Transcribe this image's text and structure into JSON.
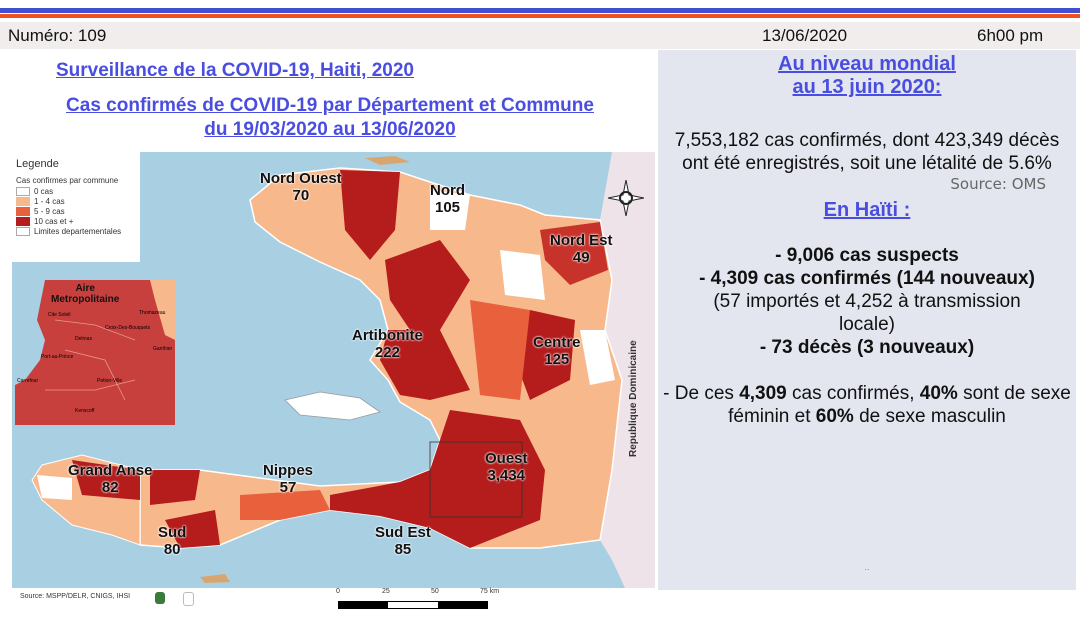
{
  "header": {
    "numero": "Numéro: 109",
    "date": "13/06/2020",
    "time": "6h00 pm"
  },
  "titles": {
    "main": "Surveillance de la COVID-19, Haiti, 2020",
    "subtitle_line1": "Cas confirmés de COVID-19 par Département et Commune",
    "subtitle_line2": "du 19/03/2020 au 13/06/2020"
  },
  "legend": {
    "title": "Legende",
    "subtitle": "Cas confirmes par commune",
    "items": [
      {
        "label": "0 cas",
        "color": "#ffffff"
      },
      {
        "label": "1 - 4 cas",
        "color": "#f7b98c"
      },
      {
        "label": "5 - 9 cas",
        "color": "#e8603c"
      },
      {
        "label": "10 cas et +",
        "color": "#b51c1c"
      },
      {
        "label": "Limites departementales",
        "color": "#ffffff"
      }
    ]
  },
  "map": {
    "sea_color": "#a9cfe3",
    "neighbor_label": "Republique Dominicaine",
    "inset": {
      "title_line1": "Aire",
      "title_line2": "Metropolitaine",
      "communes": [
        "Thomazeau",
        "Cite Soleil",
        "Croix-Des-Bouquets",
        "Delmas",
        "Port-au-Prince",
        "Carrefour",
        "Petion-Ville",
        "Kenscoff",
        "Ganthier"
      ]
    },
    "departments": [
      {
        "name": "Nord Ouest",
        "cases": "70"
      },
      {
        "name": "Nord",
        "cases": "105"
      },
      {
        "name": "Nord Est",
        "cases": "49"
      },
      {
        "name": "Artibonite",
        "cases": "222"
      },
      {
        "name": "Centre",
        "cases": "125"
      },
      {
        "name": "Ouest",
        "cases": "3,434"
      },
      {
        "name": "Grand Anse",
        "cases": "82"
      },
      {
        "name": "Nippes",
        "cases": "57"
      },
      {
        "name": "Sud",
        "cases": "80"
      },
      {
        "name": "Sud Est",
        "cases": "85"
      }
    ],
    "scale": {
      "ticks": [
        "0",
        "25",
        "50",
        "75 km"
      ]
    },
    "source": "Source: MSPP/DELR, CNIGS, IHSI"
  },
  "world": {
    "heading_line1": "Au niveau mondial",
    "heading_line2": "au 13 juin 2020:",
    "text": "7,553,182 cas confirmés, dont 423,349 décès ont été enregistrés, soit une létalité de 5.6%",
    "source": "Source: OMS"
  },
  "haiti": {
    "heading": "En Haïti :",
    "suspects": "- 9,006 cas suspects",
    "confirmed": "- 4,309 cas confirmés (144 nouveaux)",
    "confirmed_detail": "(57 importés et 4,252 à transmission locale)",
    "deaths": "- 73 décès (3 nouveaux)",
    "gender_prefix": "- De ces ",
    "gender_total": "4,309",
    "gender_mid1": " cas confirmés, ",
    "gender_female": "40%",
    "gender_mid2": " sont de sexe féminin et ",
    "gender_male": "60%",
    "gender_suffix": " de sexe masculin",
    "footer_dots": ".."
  }
}
